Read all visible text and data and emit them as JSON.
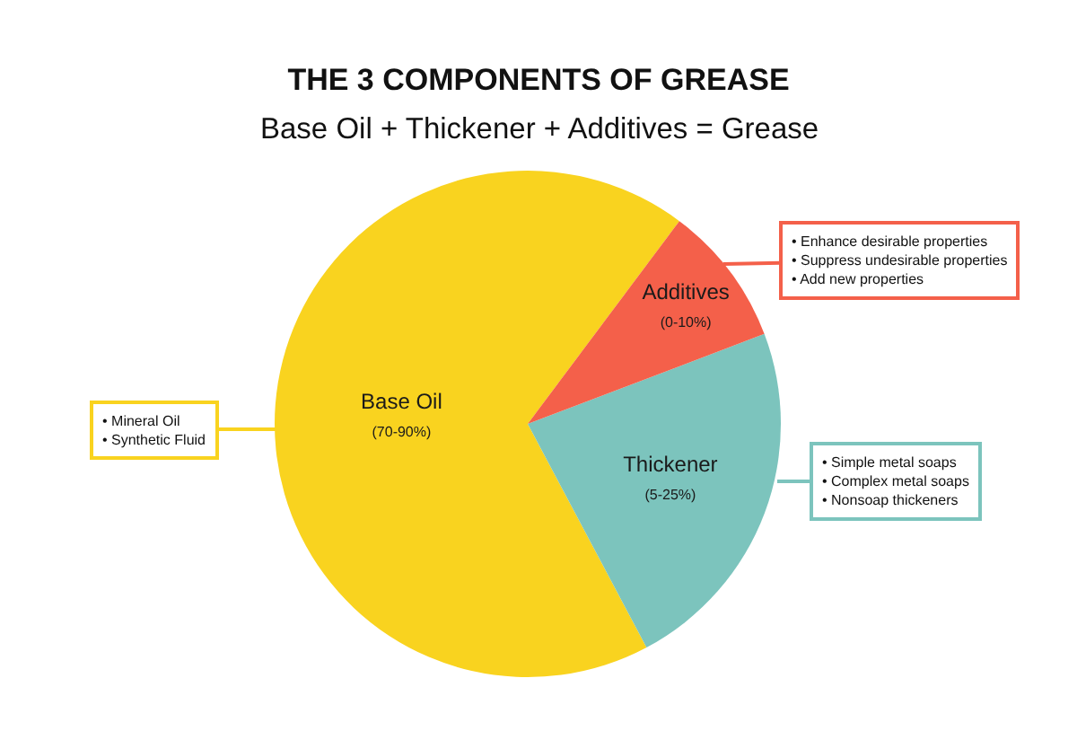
{
  "chart_data": {
    "type": "pie",
    "title": "THE 3 COMPONENTS OF GREASE",
    "subtitle": "Base Oil + Thickener + Additives = Grease",
    "categories": [
      "Base Oil\n(70-90%)",
      "Thickener\n(5-25%)",
      "Additives\n(0-10%)"
    ],
    "values": [
      68,
      23,
      9
    ],
    "colors": [
      "#f9d31f",
      "#7cc4bd",
      "#f4604a"
    ],
    "annotations": [
      "• Mineral Oil\n• Synthetic Fluid",
      "• Simple metal soaps\n• Complex metal soaps\n• Nonsoap thickeners",
      "• Enhance desirable properties\n• Suppress undesirable properties\n• Add new properties"
    ]
  }
}
